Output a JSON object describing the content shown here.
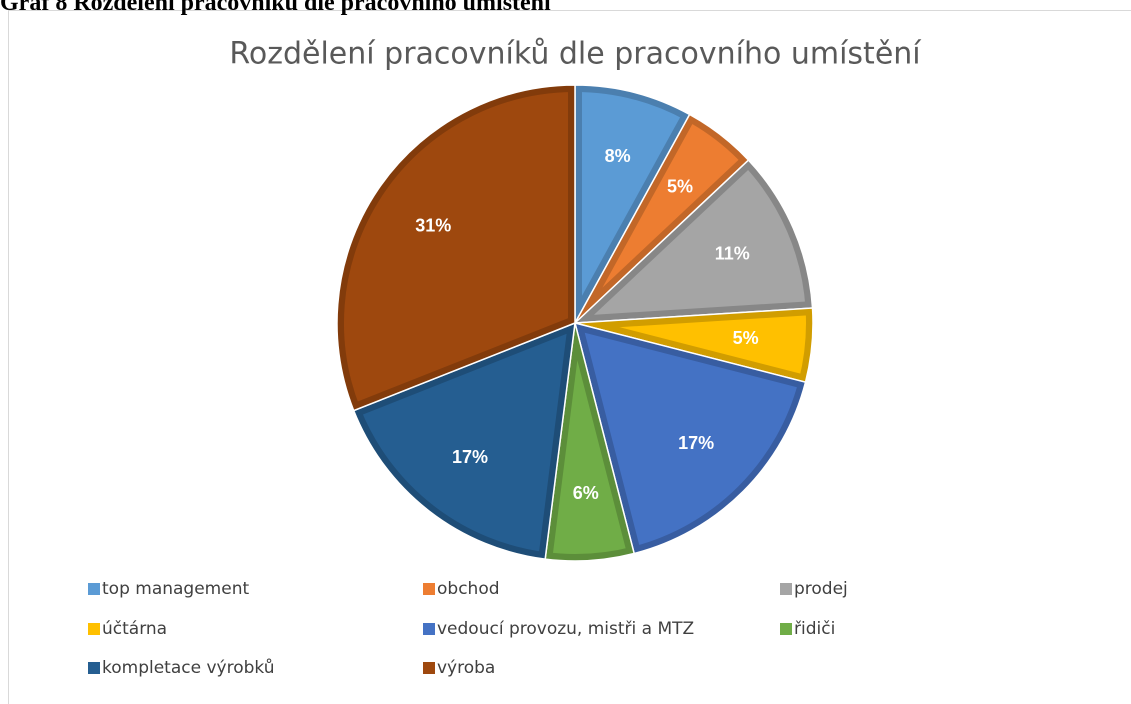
{
  "caption": "Graf 8 Rozdělení pracovníků dle pracovního umístění",
  "chart_data": {
    "type": "pie",
    "title": "Rozdělení pracovníků dle pracovního umístění",
    "categories": [
      "top management",
      "obchod",
      "prodej",
      "účtárna",
      "vedoucí provozu, mistři a MTZ",
      "řidiči",
      "kompletace výrobků",
      "výroba"
    ],
    "values": [
      8,
      5,
      11,
      5,
      17,
      6,
      17,
      31
    ],
    "value_labels": [
      "8%",
      "5%",
      "11%",
      "5%",
      "17%",
      "6%",
      "17%",
      "31%"
    ],
    "colors": [
      "#5b9bd5",
      "#ed7d31",
      "#a5a5a5",
      "#ffc000",
      "#4472c4",
      "#70ad47",
      "#255e91",
      "#9e480e"
    ],
    "legend": "bottom"
  }
}
